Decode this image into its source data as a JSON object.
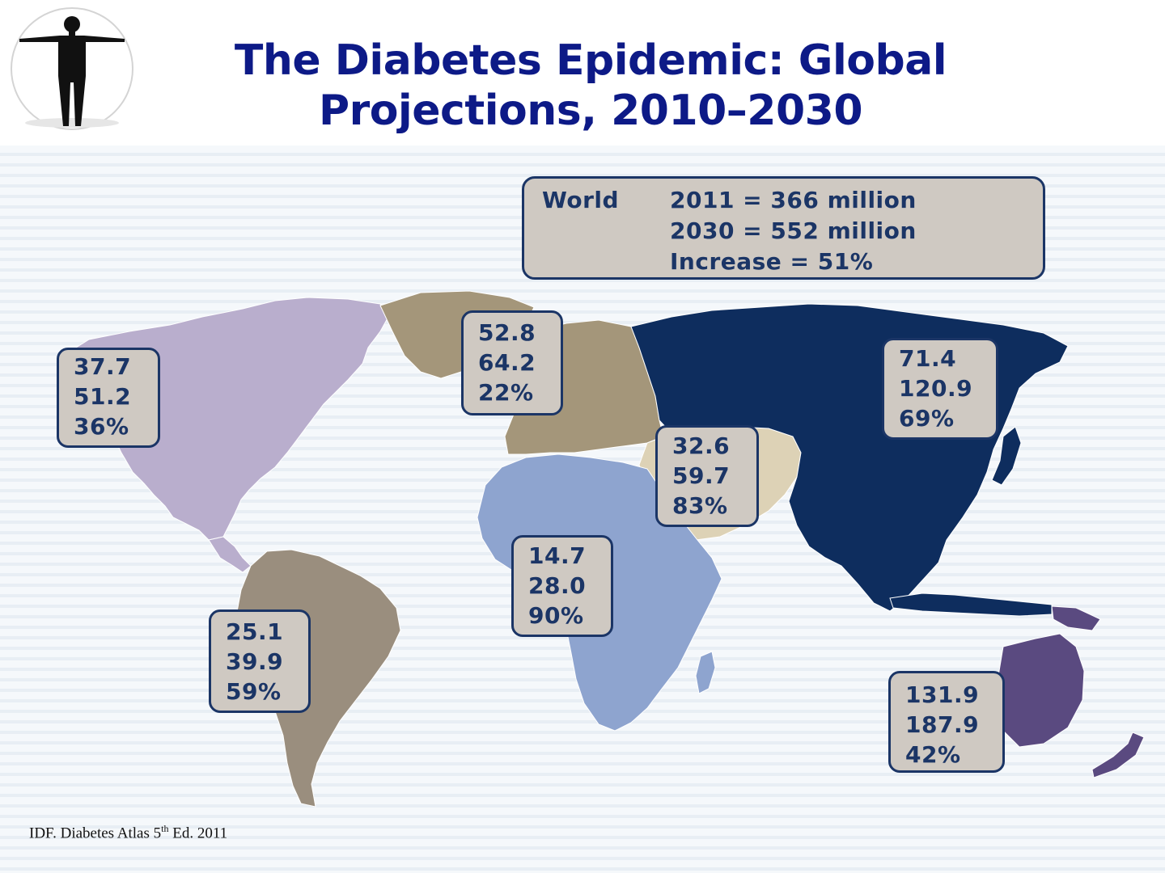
{
  "title": {
    "line1": "The Diabetes Epidemic: Global",
    "line2": "Projections, 2010–2030"
  },
  "logo": {
    "icon": "human-figure-icon"
  },
  "world": {
    "label": "World",
    "lines": [
      "2011 = 366 million",
      "2030 = 552 million",
      "Increase = 51%"
    ]
  },
  "regions": [
    {
      "name": "north-america",
      "lines": [
        "37.7",
        "51.2",
        "36%"
      ],
      "color": "#b9aecd"
    },
    {
      "name": "europe",
      "lines": [
        "52.8",
        "64.2",
        "22%"
      ],
      "color": "#a4967a"
    },
    {
      "name": "western-pacific",
      "lines": [
        "71.4",
        "120.9",
        "69%"
      ],
      "color": "#0e2d5e"
    },
    {
      "name": "middle-east",
      "lines": [
        "32.6",
        "59.7",
        "83%"
      ],
      "color": "#ddd2b6"
    },
    {
      "name": "africa",
      "lines": [
        "14.7",
        "28.0",
        "90%"
      ],
      "color": "#8ea4cf"
    },
    {
      "name": "south-america",
      "lines": [
        "25.1",
        "39.9",
        "59%"
      ],
      "color": "#9a8e7e"
    },
    {
      "name": "oceania",
      "lines": [
        "131.9",
        "187.9",
        "42%"
      ],
      "color": "#5a4a80"
    }
  ],
  "source": {
    "prefix": "IDF. Diabetes Atlas 5",
    "sup": "th",
    "suffix": " Ed. 2011"
  }
}
